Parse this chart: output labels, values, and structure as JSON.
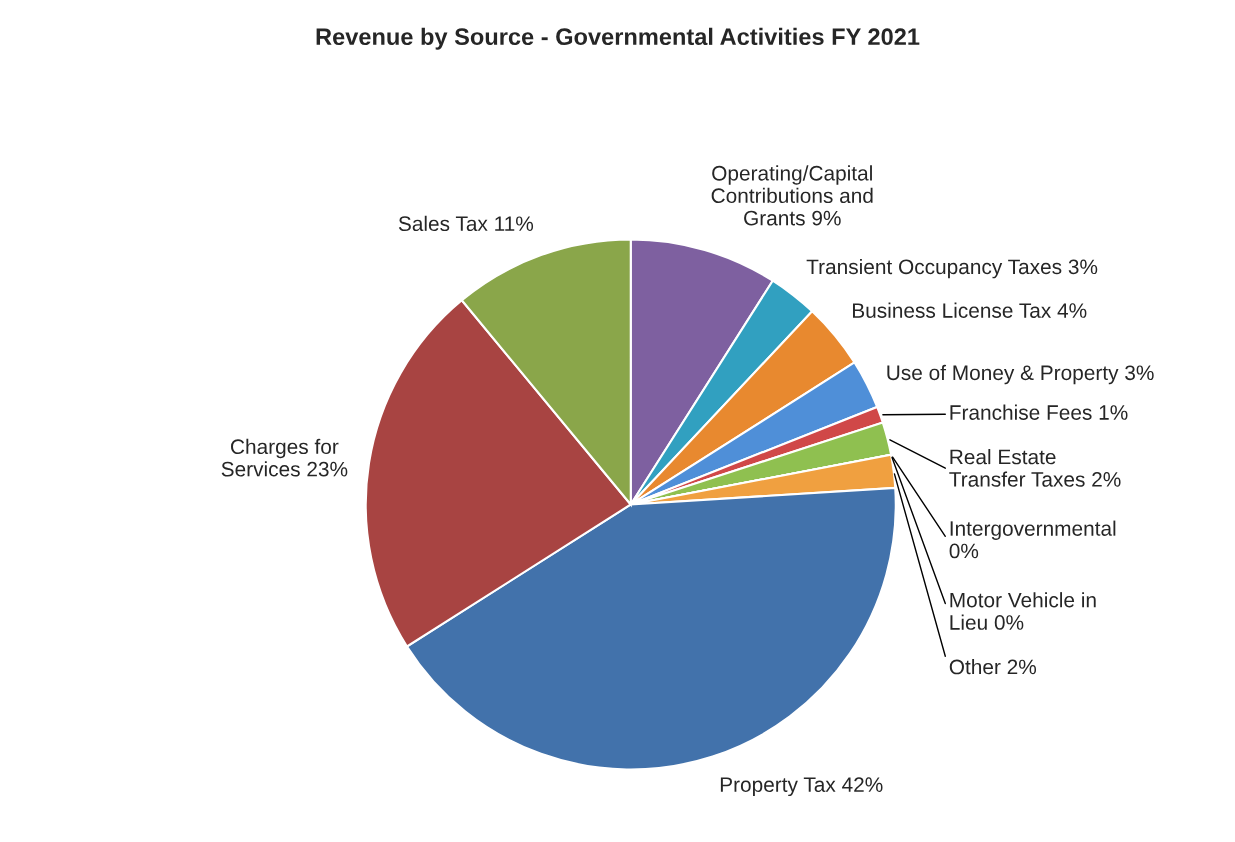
{
  "chart_data": {
    "type": "pie",
    "title": "Revenue by Source - Governmental Activities FY 2021",
    "categories": [
      "Operating/Capital\nContributions and\nGrants",
      "Transient Occupancy Taxes",
      "Business License Tax",
      "Use of Money & Property",
      "Franchise Fees",
      "Real Estate\nTransfer Taxes",
      "Intergovernmental\n",
      "Motor Vehicle in\nLieu",
      "Other",
      "Property Tax",
      "Charges for\nServices",
      "Sales Tax"
    ],
    "values": [
      9,
      3,
      4,
      3,
      1,
      2,
      0,
      0,
      2,
      42,
      23,
      11
    ],
    "value_labels": [
      "9%",
      "3%",
      "4%",
      "3%",
      "1%",
      "2%",
      "0%",
      "0%",
      "2%",
      "42%",
      "23%",
      "11%"
    ],
    "colors": [
      "#7e60a0",
      "#31a0c0",
      "#e8892f",
      "#4f8fd8",
      "#d04848",
      "#8fc050",
      "#4a7ebb",
      "#c0504d",
      "#f0a040",
      "#4272ab",
      "#a84442",
      "#8aa64a"
    ]
  }
}
